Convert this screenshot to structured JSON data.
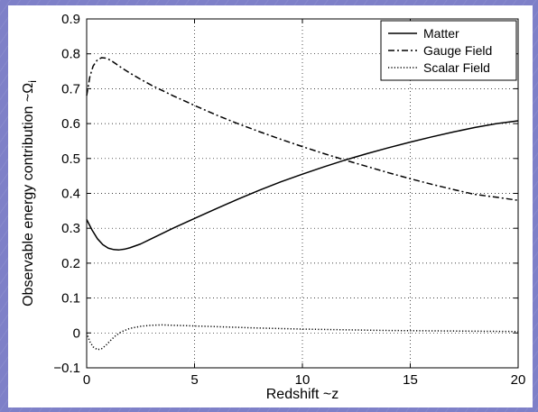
{
  "chart_data": {
    "type": "line",
    "xlabel": "Redshift ~z",
    "ylabel": "Observable energy contribution ~Ω",
    "ylabel_subscript": "i",
    "xlim": [
      0,
      20
    ],
    "ylim": [
      -0.1,
      0.9
    ],
    "xticks": [
      0,
      5,
      10,
      15,
      20
    ],
    "yticks": [
      -0.1,
      0,
      0.1,
      0.2,
      0.3,
      0.4,
      0.5,
      0.6,
      0.7,
      0.8,
      0.9
    ],
    "xtick_labels": [
      "0",
      "5",
      "10",
      "15",
      "20"
    ],
    "ytick_labels": [
      "−0.1",
      "0",
      "0.1",
      "0.2",
      "0.3",
      "0.4",
      "0.5",
      "0.6",
      "0.7",
      "0.8",
      "0.9"
    ],
    "grid": true,
    "grid_style": "dotted",
    "legend_position": "top-right",
    "series": [
      {
        "name": "Matter",
        "style": "solid",
        "x": [
          0,
          0.25,
          0.5,
          0.75,
          1.0,
          1.25,
          1.5,
          1.75,
          2.0,
          2.5,
          3,
          4,
          5,
          6,
          7,
          8,
          9,
          10,
          11,
          12,
          13,
          14,
          15,
          16,
          17,
          18,
          19,
          20
        ],
        "y": [
          0.325,
          0.295,
          0.27,
          0.253,
          0.243,
          0.239,
          0.238,
          0.24,
          0.244,
          0.255,
          0.27,
          0.3,
          0.328,
          0.356,
          0.383,
          0.409,
          0.433,
          0.455,
          0.476,
          0.496,
          0.514,
          0.531,
          0.547,
          0.562,
          0.576,
          0.589,
          0.6,
          0.608
        ]
      },
      {
        "name": "Gauge Field",
        "style": "dashdot",
        "x": [
          0,
          0.15,
          0.3,
          0.5,
          0.7,
          0.85,
          1.0,
          1.2,
          1.5,
          2,
          2.5,
          3,
          4,
          5,
          6,
          7,
          8,
          9,
          10,
          11,
          12,
          13,
          14,
          15,
          16,
          17,
          18,
          19,
          20
        ],
        "y": [
          0.68,
          0.735,
          0.765,
          0.783,
          0.789,
          0.788,
          0.785,
          0.778,
          0.765,
          0.745,
          0.727,
          0.71,
          0.68,
          0.652,
          0.625,
          0.6,
          0.577,
          0.555,
          0.534,
          0.514,
          0.495,
          0.477,
          0.459,
          0.442,
          0.426,
          0.411,
          0.397,
          0.389,
          0.38
        ]
      },
      {
        "name": "Scalar Field",
        "style": "dotted",
        "x": [
          0,
          0.15,
          0.3,
          0.5,
          0.7,
          0.9,
          1.1,
          1.3,
          1.6,
          2,
          2.5,
          3,
          3.5,
          4,
          5,
          6,
          7,
          8,
          10,
          12,
          14,
          16,
          18,
          20
        ],
        "y": [
          0.0,
          -0.025,
          -0.04,
          -0.048,
          -0.045,
          -0.035,
          -0.022,
          -0.01,
          0.003,
          0.013,
          0.019,
          0.022,
          0.023,
          0.022,
          0.02,
          0.018,
          0.016,
          0.014,
          0.011,
          0.009,
          0.007,
          0.006,
          0.005,
          0.004
        ]
      }
    ]
  }
}
